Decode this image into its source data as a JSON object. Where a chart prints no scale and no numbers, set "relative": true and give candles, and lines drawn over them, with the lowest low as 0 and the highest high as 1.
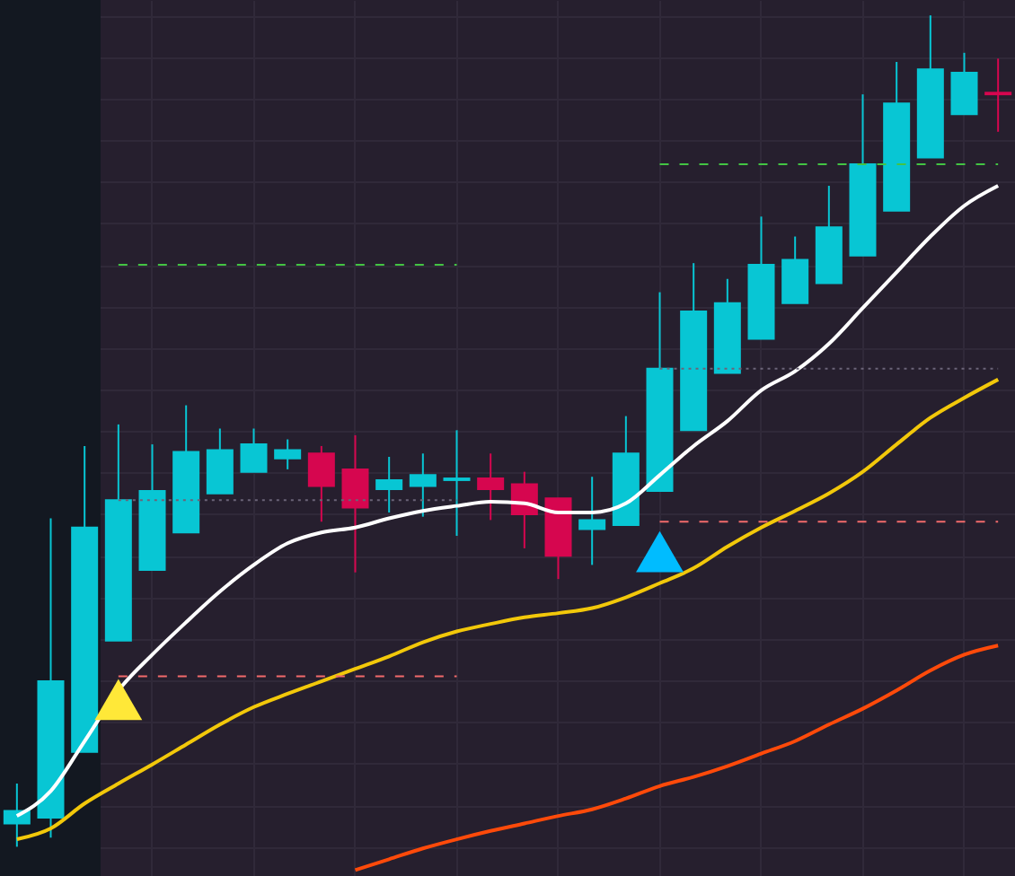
{
  "chart_data": {
    "type": "candlestick",
    "relative": true,
    "grid": true,
    "categories": [
      null,
      null,
      null,
      null,
      null,
      null,
      null,
      null,
      null,
      null,
      null,
      null,
      null,
      null,
      null,
      null,
      null,
      null,
      null,
      null,
      null,
      null,
      null,
      null,
      null,
      null,
      null,
      null,
      null,
      null
    ],
    "ohlc": [
      [
        0.028,
        0.076,
        0,
        0.043
      ],
      [
        0.035,
        0.395,
        0.011,
        0.199
      ],
      [
        0.114,
        0.482,
        0.114,
        0.384
      ],
      [
        0.248,
        0.508,
        0.248,
        0.417
      ],
      [
        0.333,
        0.484,
        0.333,
        0.428
      ],
      [
        0.378,
        0.531,
        0.378,
        0.475
      ],
      [
        0.425,
        0.503,
        0.425,
        0.477
      ],
      [
        0.451,
        0.503,
        0.451,
        0.484
      ],
      [
        0.467,
        0.49,
        0.454,
        0.477
      ],
      [
        0.473,
        0.482,
        0.391,
        0.434
      ],
      [
        0.454,
        0.495,
        0.33,
        0.408
      ],
      [
        0.43,
        0.469,
        0.402,
        0.441
      ],
      [
        0.434,
        0.473,
        0.397,
        0.447
      ],
      [
        0.441,
        0.501,
        0.374,
        0.443
      ],
      [
        0.443,
        0.473,
        0.393,
        0.43
      ],
      [
        0.436,
        0.451,
        0.359,
        0.4
      ],
      [
        0.419,
        0.419,
        0.322,
        0.35
      ],
      [
        0.382,
        0.445,
        0.339,
        0.393
      ],
      [
        0.387,
        0.518,
        0.387,
        0.473
      ],
      [
        0.428,
        0.667,
        0.428,
        0.575
      ],
      [
        0.501,
        0.702,
        0.501,
        0.644
      ],
      [
        0.57,
        0.683,
        0.57,
        0.654
      ],
      [
        0.611,
        0.758,
        0.611,
        0.7
      ],
      [
        0.654,
        0.734,
        0.654,
        0.706
      ],
      [
        0.678,
        0.795,
        0.678,
        0.745
      ],
      [
        0.711,
        0.905,
        0.711,
        0.821
      ],
      [
        0.765,
        0.944,
        0.765,
        0.894
      ],
      [
        0.829,
        1,
        0.829,
        0.935
      ],
      [
        0.881,
        0.955,
        0.881,
        0.931
      ],
      [
        0.907,
        0.948,
        0.86,
        0.905
      ]
    ],
    "colors": [
      "#08c6d4",
      "#08c6d4",
      "#08c6d4",
      "#08c6d4",
      "#08c6d4",
      "#08c6d4",
      "#08c6d4",
      "#08c6d4",
      "#08c6d4",
      "#d6064f",
      "#d6064f",
      "#08c6d4",
      "#08c6d4",
      "#08c6d4",
      "#d6064f",
      "#d6064f",
      "#d6064f",
      "#08c6d4",
      "#08c6d4",
      "#08c6d4",
      "#08c6d4",
      "#08c6d4",
      "#08c6d4",
      "#08c6d4",
      "#08c6d4",
      "#08c6d4",
      "#08c6d4",
      "#08c6d4",
      "#08c6d4",
      "#d6064f"
    ],
    "series": [
      {
        "type": "line",
        "color": "#ffffff",
        "values": [
          0.037,
          0.067,
          0.127,
          0.188,
          0.231,
          0.27,
          0.307,
          0.339,
          0.365,
          0.378,
          0.384,
          0.395,
          0.404,
          0.41,
          0.415,
          0.413,
          0.402,
          0.402,
          0.413,
          0.447,
          0.482,
          0.512,
          0.549,
          0.572,
          0.605,
          0.648,
          0.691,
          0.734,
          0.771,
          0.795
        ]
      },
      {
        "type": "line",
        "color": "#f2c80a",
        "values": [
          0.009,
          0.022,
          0.052,
          0.076,
          0.099,
          0.123,
          0.147,
          0.168,
          0.184,
          0.199,
          0.214,
          0.229,
          0.246,
          0.259,
          0.268,
          0.276,
          0.281,
          0.287,
          0.3,
          0.317,
          0.335,
          0.361,
          0.384,
          0.404,
          0.425,
          0.451,
          0.484,
          0.516,
          0.54,
          0.562
        ]
      },
      {
        "type": "line",
        "color": "#ff4a0a",
        "values": [
          null,
          null,
          null,
          null,
          null,
          null,
          null,
          null,
          null,
          null,
          -0.028,
          -0.015,
          -0.002,
          0.009,
          0.019,
          0.028,
          0.037,
          0.045,
          0.058,
          0.073,
          0.084,
          0.097,
          0.112,
          0.127,
          0.147,
          0.166,
          0.188,
          0.212,
          0.231,
          0.242
        ]
      },
      {
        "type": "line",
        "color": "#43c443",
        "line_style": "dashed",
        "values": [
          null,
          null,
          null,
          0.7,
          0.7,
          0.7,
          0.7,
          0.7,
          0.7,
          0.7,
          0.7,
          0.7,
          0.7,
          0.7,
          null,
          null,
          null,
          null,
          null,
          0.821,
          0.821,
          0.821,
          0.821,
          0.821,
          0.821,
          0.821,
          0.821,
          0.821,
          0.821,
          0.821
        ]
      },
      {
        "type": "line",
        "color": "#f26b6b",
        "line_style": "dashed",
        "values": [
          null,
          null,
          null,
          0.205,
          0.205,
          0.205,
          0.205,
          0.205,
          0.205,
          0.205,
          0.205,
          0.205,
          0.205,
          0.205,
          null,
          null,
          null,
          null,
          null,
          0.391,
          0.391,
          0.391,
          0.391,
          0.391,
          0.391,
          0.391,
          0.391,
          0.391,
          0.391,
          0.391
        ]
      },
      {
        "type": "line",
        "color": "#6b6478",
        "line_style": "dotted",
        "values": [
          null,
          null,
          null,
          0.417,
          0.417,
          0.417,
          0.417,
          0.417,
          0.417,
          0.417,
          0.417,
          0.417,
          0.417,
          0.417,
          null,
          null,
          null,
          null,
          null,
          0.575,
          0.575,
          0.575,
          0.575,
          0.575,
          0.575,
          0.575,
          0.575,
          0.575,
          0.575,
          0.575
        ]
      },
      {
        "type": "scatter",
        "marker": "triangle",
        "color": "#ffe838",
        "values": [
          null,
          null,
          null,
          0.177,
          null,
          null,
          null,
          null,
          null,
          null,
          null,
          null,
          null,
          null,
          null,
          null,
          null,
          null,
          null,
          null,
          null,
          null,
          null,
          null,
          null,
          null,
          null,
          null,
          null,
          null
        ]
      },
      {
        "type": "scatter",
        "marker": "triangle",
        "color": "#00bcff",
        "values": [
          null,
          null,
          null,
          null,
          null,
          null,
          null,
          null,
          null,
          null,
          null,
          null,
          null,
          null,
          null,
          null,
          null,
          null,
          null,
          0.355,
          null,
          null,
          null,
          null,
          null,
          null,
          null,
          null,
          null,
          null
        ]
      }
    ]
  }
}
